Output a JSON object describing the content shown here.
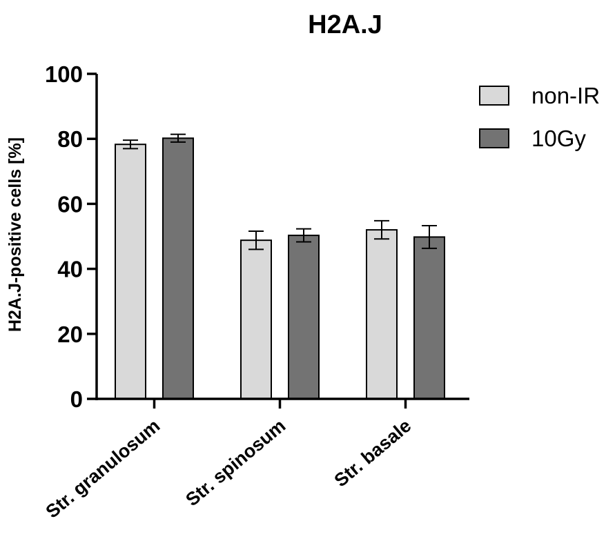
{
  "chart_data": {
    "type": "bar",
    "title": "H2A.J",
    "xlabel": "",
    "ylabel": "H2A.J-positive cells [%]",
    "ylim": [
      0,
      100
    ],
    "yticks": [
      "0",
      "20",
      "40",
      "60",
      "80",
      "100"
    ],
    "categories": [
      "Str. granulosum",
      "Str. spinosum",
      "Str. basale"
    ],
    "series": [
      {
        "name": "non-IR",
        "color": "#d9d9d9",
        "values": [
          78.3,
          48.8,
          52.0
        ],
        "errors": [
          1.3,
          2.8,
          2.8
        ]
      },
      {
        "name": "10Gy",
        "color": "#737373",
        "values": [
          80.2,
          50.3,
          49.8
        ],
        "errors": [
          1.2,
          2.0,
          3.5
        ]
      }
    ],
    "legend_position": "top-right",
    "grid": false
  }
}
